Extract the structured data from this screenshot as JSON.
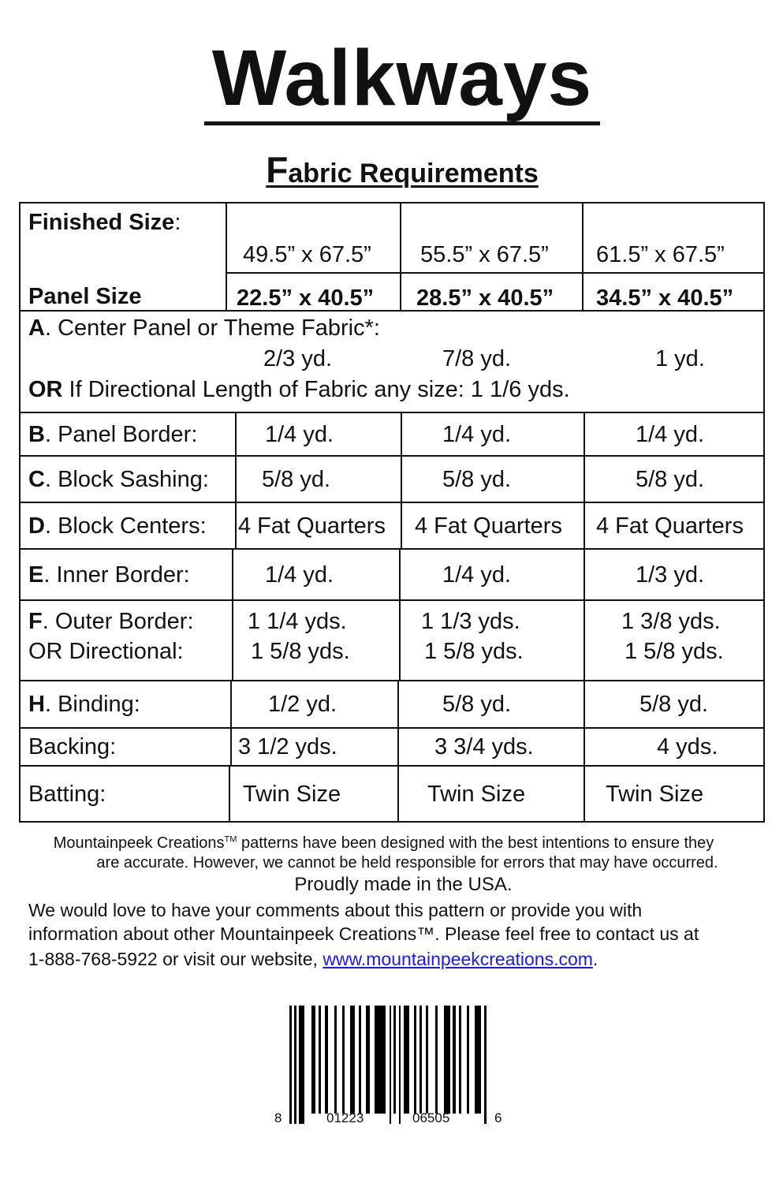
{
  "title": "Walkways",
  "subtitle_first": "F",
  "subtitle_rest": "abric Requirements",
  "header": {
    "finished_label": "Finished Size",
    "finished_colon": ":",
    "panel_label": "Panel Size",
    "finished": [
      "49.5” x 67.5”",
      "55.5” x 67.5”",
      "61.5” x 67.5”"
    ],
    "panel": [
      "22.5” x 40.5”",
      "28.5” x 40.5”",
      "34.5” x 40.5”"
    ]
  },
  "rowA": {
    "letter": "A",
    "label": ". Center Panel or Theme Fabric*:",
    "values": [
      "2/3 yd.",
      "7/8 yd.",
      "1 yd."
    ],
    "or_bold": "OR",
    "or_text": " If Directional Length of Fabric any size:  1 1/6 yds."
  },
  "rows": [
    {
      "letter": "B",
      "label": ". Panel Border:",
      "values": [
        "1/4 yd.",
        "1/4 yd.",
        "1/4 yd."
      ]
    },
    {
      "letter": "C",
      "label": ". Block Sashing:",
      "values": [
        "5/8 yd.",
        "5/8 yd.",
        "5/8 yd."
      ]
    },
    {
      "letter": "D",
      "label": ". Block Centers:",
      "values": [
        "4 Fat Quarters",
        "4 Fat Quarters",
        "4 Fat Quarters"
      ]
    },
    {
      "letter": "E",
      "label": ". Inner Border:",
      "values": [
        "1/4 yd.",
        "1/4 yd.",
        "1/3 yd."
      ]
    },
    {
      "letter": "F",
      "label": ". Outer Border:",
      "values": [
        "1 1/4 yds.",
        "1 1/3 yds.",
        "1 3/8 yds."
      ],
      "label2": "OR Directional:",
      "values2": [
        "1 5/8 yds.",
        "1 5/8 yds.",
        "1 5/8 yds."
      ]
    },
    {
      "letter": "H",
      "label": ". Binding:",
      "values": [
        "1/2 yd.",
        "5/8 yd.",
        "5/8 yd."
      ]
    },
    {
      "letter": "",
      "label": "Backing:",
      "values": [
        "3 1/2 yds.",
        "3 3/4 yds.",
        "4 yds."
      ]
    },
    {
      "letter": "",
      "label": "Batting:",
      "values": [
        "Twin Size",
        "Twin Size",
        "Twin Size"
      ]
    }
  ],
  "footer": {
    "disclaimer1a": "Mountainpeek Creations",
    "tm": "TM",
    "disclaimer1b": " patterns have been designed with the best intentions to ensure they",
    "disclaimer2": "are accurate.  However, we cannot be held responsible for errors that may have occurred.",
    "made": "Proudly made in the USA.",
    "contact1": "We would love to have your comments about this pattern or provide you with",
    "contact2": "information about other Mountainpeek Creations™.  Please feel free to contact us at",
    "contact3": "1-888-768-5922 or visit our website, ",
    "website": "www.mountainpeekcreations.com",
    "period": "."
  },
  "barcode": {
    "first": "8",
    "left": "01223",
    "right": "06505",
    "last": "6"
  },
  "colors": {
    "text": "#111111",
    "link": "#1a1aee"
  }
}
